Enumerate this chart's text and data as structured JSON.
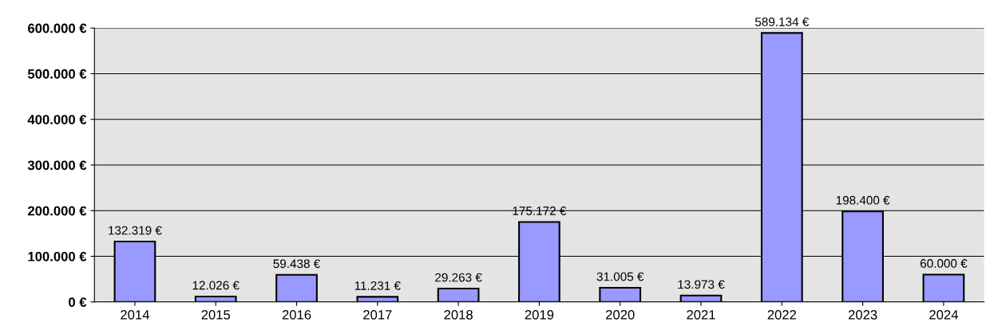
{
  "chart_data": {
    "type": "bar",
    "categories": [
      "2014",
      "2015",
      "2016",
      "2017",
      "2018",
      "2019",
      "2020",
      "2021",
      "2022",
      "2023",
      "2024"
    ],
    "values": [
      132319,
      12026,
      59438,
      11231,
      29263,
      175172,
      31005,
      13973,
      589134,
      198400,
      60000
    ],
    "value_labels": [
      "132.319 €",
      "12.026 €",
      "59.438 €",
      "11.231 €",
      "29.263 €",
      "175.172 €",
      "31.005 €",
      "13.973 €",
      "589.134 €",
      "198.400 €",
      "60.000 €"
    ],
    "color": "#9999ff",
    "ylim": [
      0,
      600000
    ],
    "yticks": [
      {
        "value": 0,
        "label": "0 €"
      },
      {
        "value": 100000,
        "label": "100.000 €"
      },
      {
        "value": 200000,
        "label": "200.000 €"
      },
      {
        "value": 300000,
        "label": "300.000 €"
      },
      {
        "value": 400000,
        "label": "400.000 €"
      },
      {
        "value": 500000,
        "label": "500.000 €"
      },
      {
        "value": 600000,
        "label": "600.000 €"
      }
    ],
    "grid": "y",
    "legend": false
  }
}
